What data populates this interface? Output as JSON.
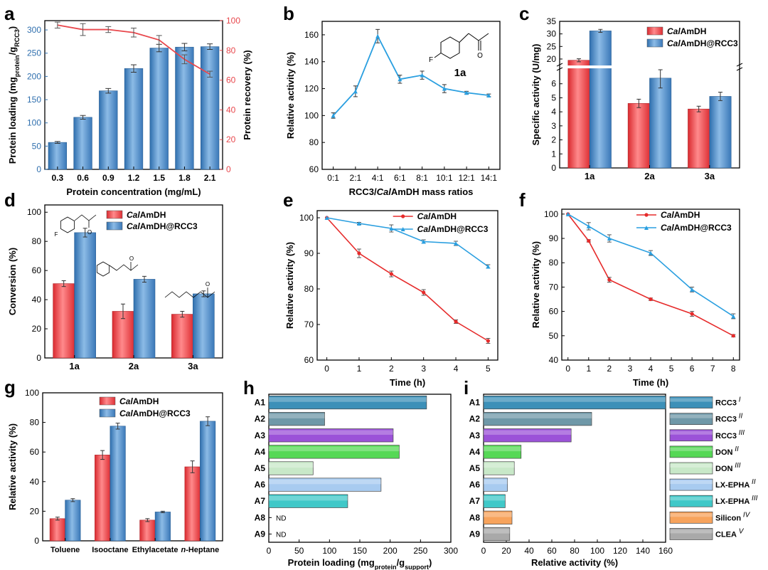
{
  "chart_data": [
    {
      "id": "a",
      "type": "bar+line",
      "panel_letter": "a",
      "categories": [
        "0.3",
        "0.6",
        "0.9",
        "1.2",
        "1.5",
        "1.8",
        "2.1"
      ],
      "xlabel": "Protein concentration (mg/mL)",
      "ylabel_parts": [
        "Protein loading (mg",
        "protein",
        "/g",
        "RCC3",
        ")"
      ],
      "ylabel_right": "Protein recovery (%)",
      "ylim": [
        0,
        320
      ],
      "yticks": [
        0,
        50,
        100,
        150,
        200,
        250,
        300
      ],
      "ylim_right": [
        0,
        100
      ],
      "yticks_right": [
        0,
        20,
        40,
        60,
        80,
        100
      ],
      "bars": {
        "name": "Protein loading",
        "values": [
          58,
          112,
          169,
          217,
          261,
          263,
          264
        ],
        "errors": [
          2,
          4,
          5,
          8,
          8,
          8,
          6
        ],
        "color": "#4f8fc8"
      },
      "line": {
        "name": "Protein recovery",
        "values": [
          97,
          94,
          94,
          92,
          87,
          74,
          64
        ],
        "errors": [
          2,
          4,
          2,
          3,
          3,
          3,
          2
        ],
        "color": "#e8474c"
      }
    },
    {
      "id": "b",
      "type": "line",
      "panel_letter": "b",
      "categories": [
        "0:1",
        "2:1",
        "4:1",
        "6:1",
        "8:1",
        "10:1",
        "12:1",
        "14:1"
      ],
      "xlabel_parts": [
        "RCC3/",
        "Cal",
        "AmDH mass ratios"
      ],
      "ylabel": "Relative activity (%)",
      "ylim": [
        60,
        170
      ],
      "yticks": [
        60,
        80,
        100,
        120,
        140,
        160
      ],
      "series": [
        {
          "values": [
            100,
            118,
            159,
            127,
            130,
            120,
            117,
            115
          ],
          "errors": [
            2,
            4,
            5,
            3,
            3,
            3,
            1,
            1
          ],
          "color": "#2a9fe0"
        }
      ],
      "inset_label": "1a"
    },
    {
      "id": "c",
      "type": "bar",
      "panel_letter": "c",
      "categories": [
        "1a",
        "2a",
        "3a"
      ],
      "ylabel": "Specific activity (U/mg)",
      "yticks_upper": [
        20,
        25,
        30,
        35
      ],
      "yticks_lower": [
        0,
        1,
        2,
        3,
        4,
        5,
        6
      ],
      "axis_break": [
        7,
        18
      ],
      "series": [
        {
          "name_parts": [
            "Cal",
            "AmDH"
          ],
          "values": [
            19.5,
            4.6,
            4.2
          ],
          "errors": [
            0.6,
            0.3,
            0.2
          ],
          "color": "#ee4b4f"
        },
        {
          "name_parts": [
            "Cal",
            "AmDH@RCC3"
          ],
          "values": [
            31.2,
            6.4,
            5.1
          ],
          "errors": [
            0.6,
            0.7,
            0.3
          ],
          "color": "#4f8fc8"
        }
      ],
      "legend": "top-right"
    },
    {
      "id": "d",
      "type": "bar",
      "panel_letter": "d",
      "categories": [
        "1a",
        "2a",
        "3a"
      ],
      "ylabel": "Conversion (%)",
      "ylim": [
        0,
        100
      ],
      "yticks": [
        0,
        20,
        40,
        60,
        80,
        100
      ],
      "series": [
        {
          "name_parts": [
            "Cal",
            "AmDH"
          ],
          "values": [
            51,
            32,
            30
          ],
          "errors": [
            2,
            5,
            2
          ],
          "color": "#ee4b4f"
        },
        {
          "name_parts": [
            "Cal",
            "AmDH@RCC3"
          ],
          "values": [
            86,
            54,
            44
          ],
          "errors": [
            3,
            2,
            2
          ],
          "color": "#4f8fc8"
        }
      ],
      "legend": "top"
    },
    {
      "id": "e",
      "type": "line",
      "panel_letter": "e",
      "x": [
        0,
        1,
        2,
        3,
        4,
        5
      ],
      "xticks": [
        0,
        1,
        2,
        3,
        4,
        5
      ],
      "xlabel": "Time (h)",
      "ylabel": "Relative activity (%)",
      "ylim": [
        60,
        102
      ],
      "yticks": [
        60,
        70,
        80,
        90,
        100
      ],
      "series": [
        {
          "name_parts": [
            "Cal",
            "AmDH"
          ],
          "values": [
            100,
            90,
            84.2,
            79,
            70.8,
            65.4
          ],
          "errors": [
            0,
            1.2,
            0.8,
            0.8,
            0.5,
            0.7
          ],
          "color": "#e62b2b"
        },
        {
          "name_parts": [
            "Cal",
            "AmDH@RCC3"
          ],
          "values": [
            100,
            98.4,
            97,
            93.3,
            92.8,
            86.3
          ],
          "errors": [
            0,
            0.3,
            1,
            0.5,
            0.6,
            0.5
          ],
          "color": "#2a9fe0"
        }
      ],
      "legend": "top-right"
    },
    {
      "id": "f",
      "type": "line",
      "panel_letter": "f",
      "x": [
        0,
        1,
        2,
        4,
        6,
        8
      ],
      "xticks": [
        0,
        1,
        2,
        3,
        4,
        5,
        6,
        7,
        8
      ],
      "xlabel": "Time (h)",
      "ylabel": "Relative activity (%)",
      "ylim": [
        40,
        102
      ],
      "yticks": [
        40,
        50,
        60,
        70,
        80,
        90,
        100
      ],
      "series": [
        {
          "name_parts": [
            "Cal",
            "AmDH"
          ],
          "values": [
            100,
            89,
            73,
            65,
            59,
            50
          ],
          "errors": [
            0,
            0.5,
            1,
            0.5,
            1,
            0.5
          ],
          "color": "#e62b2b"
        },
        {
          "name_parts": [
            "Cal",
            "AmDH@RCC3"
          ],
          "values": [
            100,
            95,
            90,
            84,
            69,
            58
          ],
          "errors": [
            0,
            1.5,
            1.5,
            1,
            1,
            1
          ],
          "color": "#2a9fe0"
        }
      ],
      "legend": "top-right"
    },
    {
      "id": "g",
      "type": "bar",
      "panel_letter": "g",
      "categories": [
        "Toluene",
        "Isooctane",
        "Ethylacetate",
        "n-Heptane"
      ],
      "ylabel": "Relative activity (%)",
      "ylim": [
        0,
        100
      ],
      "yticks": [
        0,
        20,
        40,
        60,
        80,
        100
      ],
      "series": [
        {
          "name_parts": [
            "Cal",
            "AmDH"
          ],
          "values": [
            15,
            58,
            14,
            50
          ],
          "errors": [
            1,
            3,
            1,
            4
          ],
          "color": "#ee4b4f"
        },
        {
          "name_parts": [
            "Cal",
            "AmDH@RCC3"
          ],
          "values": [
            27.5,
            77.5,
            19.5,
            80.8
          ],
          "errors": [
            1,
            2,
            0.5,
            3
          ],
          "color": "#4f8fc8"
        }
      ],
      "legend": "top-left"
    },
    {
      "id": "h",
      "type": "bar-horizontal",
      "panel_letter": "h",
      "categories": [
        "A1",
        "A2",
        "A3",
        "A4",
        "A5",
        "A6",
        "A7",
        "A8",
        "A9"
      ],
      "xlabel_parts": [
        "Protein loading (mg",
        "protein",
        "/g",
        "support",
        ")"
      ],
      "xlim": [
        0,
        300
      ],
      "xticks": [
        0,
        50,
        100,
        150,
        200,
        250,
        300
      ],
      "values": [
        260,
        92,
        205,
        215,
        73,
        185,
        130,
        null,
        null
      ],
      "value_labels": [
        "",
        "",
        "",
        "",
        "",
        "",
        "",
        "ND",
        "ND"
      ],
      "colors": [
        "#3c90b8",
        "#6f98a8",
        "#9b52d8",
        "#56d856",
        "#c8e8c8",
        "#a8cbf0",
        "#40c8c8",
        "#ffffff",
        "#ffffff"
      ]
    },
    {
      "id": "i",
      "type": "bar-horizontal",
      "panel_letter": "i",
      "categories": [
        "A1",
        "A2",
        "A3",
        "A4",
        "A5",
        "A6",
        "A7",
        "A8",
        "A9"
      ],
      "xlabel": "Relative activity (%)",
      "xlim": [
        0,
        160
      ],
      "xticks": [
        0,
        20,
        40,
        60,
        80,
        100,
        120,
        140,
        160
      ],
      "values": [
        160,
        95,
        77,
        33,
        27,
        21,
        19,
        25,
        23
      ],
      "colors": [
        "#3c90b8",
        "#6f98a8",
        "#9b52d8",
        "#56d856",
        "#c8e8c8",
        "#a8cbf0",
        "#40c8c8",
        "#f7a35c",
        "#a9a9a9"
      ],
      "legend": {
        "entries": [
          {
            "label": "RCC3",
            "sup": "I",
            "color": "#3c90b8"
          },
          {
            "label": "RCC3",
            "sup": "II",
            "color": "#6f98a8"
          },
          {
            "label": "RCC3",
            "sup": "III",
            "color": "#9b52d8"
          },
          {
            "label": "DON",
            "sup": "II",
            "color": "#56d856"
          },
          {
            "label": "DON",
            "sup": "III",
            "color": "#c8e8c8"
          },
          {
            "label": "LX-EPHA",
            "sup": "II",
            "color": "#a8cbf0"
          },
          {
            "label": "LX-EPHA",
            "sup": "III",
            "color": "#40c8c8"
          },
          {
            "label": "Silicon",
            "sup": "IV",
            "color": "#f7a35c"
          },
          {
            "label": "CLEA",
            "sup": "V",
            "color": "#a9a9a9"
          }
        ]
      }
    }
  ]
}
